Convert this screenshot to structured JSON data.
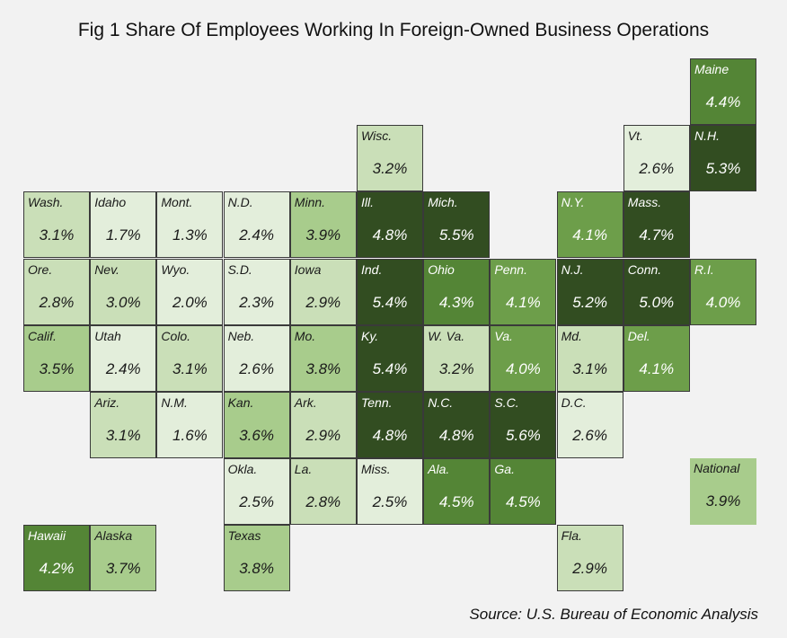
{
  "title": "Fig 1 Share Of Employees Working In Foreign-Owned Business Operations",
  "source": "Source: U.S. Bureau of Economic Analysis",
  "colors": {
    "c1": "#e3eedb",
    "c2": "#cadfb8",
    "c3": "#a8cc8c",
    "c4": "#6d9e4a",
    "c5": "#548536",
    "c6": "#324d21"
  },
  "tiles": [
    {
      "label": "Maine",
      "value": "4.4%",
      "col": 10,
      "row": 0
    },
    {
      "label": "Wisc.",
      "value": "3.2%",
      "col": 5,
      "row": 1
    },
    {
      "label": "Vt.",
      "value": "2.6%",
      "col": 9,
      "row": 1
    },
    {
      "label": "N.H.",
      "value": "5.3%",
      "col": 10,
      "row": 1
    },
    {
      "label": "Wash.",
      "value": "3.1%",
      "col": 0,
      "row": 2
    },
    {
      "label": "Idaho",
      "value": "1.7%",
      "col": 1,
      "row": 2
    },
    {
      "label": "Mont.",
      "value": "1.3%",
      "col": 2,
      "row": 2
    },
    {
      "label": "N.D.",
      "value": "2.4%",
      "col": 3,
      "row": 2
    },
    {
      "label": "Minn.",
      "value": "3.9%",
      "col": 4,
      "row": 2
    },
    {
      "label": "Ill.",
      "value": "4.8%",
      "col": 5,
      "row": 2
    },
    {
      "label": "Mich.",
      "value": "5.5%",
      "col": 6,
      "row": 2
    },
    {
      "label": "N.Y.",
      "value": "4.1%",
      "col": 8,
      "row": 2
    },
    {
      "label": "Mass.",
      "value": "4.7%",
      "col": 9,
      "row": 2
    },
    {
      "label": "Ore.",
      "value": "2.8%",
      "col": 0,
      "row": 3
    },
    {
      "label": "Nev.",
      "value": "3.0%",
      "col": 1,
      "row": 3
    },
    {
      "label": "Wyo.",
      "value": "2.0%",
      "col": 2,
      "row": 3
    },
    {
      "label": "S.D.",
      "value": "2.3%",
      "col": 3,
      "row": 3
    },
    {
      "label": "Iowa",
      "value": "2.9%",
      "col": 4,
      "row": 3
    },
    {
      "label": "Ind.",
      "value": "5.4%",
      "col": 5,
      "row": 3
    },
    {
      "label": "Ohio",
      "value": "4.3%",
      "col": 6,
      "row": 3
    },
    {
      "label": "Penn.",
      "value": "4.1%",
      "col": 7,
      "row": 3
    },
    {
      "label": "N.J.",
      "value": "5.2%",
      "col": 8,
      "row": 3
    },
    {
      "label": "Conn.",
      "value": "5.0%",
      "col": 9,
      "row": 3
    },
    {
      "label": "R.I.",
      "value": "4.0%",
      "col": 10,
      "row": 3
    },
    {
      "label": "Calif.",
      "value": "3.5%",
      "col": 0,
      "row": 4
    },
    {
      "label": "Utah",
      "value": "2.4%",
      "col": 1,
      "row": 4
    },
    {
      "label": "Colo.",
      "value": "3.1%",
      "col": 2,
      "row": 4
    },
    {
      "label": "Neb.",
      "value": "2.6%",
      "col": 3,
      "row": 4
    },
    {
      "label": "Mo.",
      "value": "3.8%",
      "col": 4,
      "row": 4
    },
    {
      "label": "Ky.",
      "value": "5.4%",
      "col": 5,
      "row": 4
    },
    {
      "label": "W. Va.",
      "value": "3.2%",
      "col": 6,
      "row": 4
    },
    {
      "label": "Va.",
      "value": "4.0%",
      "col": 7,
      "row": 4
    },
    {
      "label": "Md.",
      "value": "3.1%",
      "col": 8,
      "row": 4
    },
    {
      "label": "Del.",
      "value": "4.1%",
      "col": 9,
      "row": 4
    },
    {
      "label": "Ariz.",
      "value": "3.1%",
      "col": 1,
      "row": 5
    },
    {
      "label": "N.M.",
      "value": "1.6%",
      "col": 2,
      "row": 5
    },
    {
      "label": "Kan.",
      "value": "3.6%",
      "col": 3,
      "row": 5
    },
    {
      "label": "Ark.",
      "value": "2.9%",
      "col": 4,
      "row": 5
    },
    {
      "label": "Tenn.",
      "value": "4.8%",
      "col": 5,
      "row": 5
    },
    {
      "label": "N.C.",
      "value": "4.8%",
      "col": 6,
      "row": 5
    },
    {
      "label": "S.C.",
      "value": "5.6%",
      "col": 7,
      "row": 5
    },
    {
      "label": "D.C.",
      "value": "2.6%",
      "col": 8,
      "row": 5
    },
    {
      "label": "Okla.",
      "value": "2.5%",
      "col": 3,
      "row": 6
    },
    {
      "label": "La.",
      "value": "2.8%",
      "col": 4,
      "row": 6
    },
    {
      "label": "Miss.",
      "value": "2.5%",
      "col": 5,
      "row": 6
    },
    {
      "label": "Ala.",
      "value": "4.5%",
      "col": 6,
      "row": 6
    },
    {
      "label": "Ga.",
      "value": "4.5%",
      "col": 7,
      "row": 6
    },
    {
      "label": "National",
      "value": "3.9%",
      "col": 10,
      "row": 6,
      "noborder": true
    },
    {
      "label": "Hawaii",
      "value": "4.2%",
      "col": 0,
      "row": 7
    },
    {
      "label": "Alaska",
      "value": "3.7%",
      "col": 1,
      "row": 7
    },
    {
      "label": "Texas",
      "value": "3.8%",
      "col": 3,
      "row": 7
    },
    {
      "label": "Fla.",
      "value": "2.9%",
      "col": 8,
      "row": 7
    }
  ]
}
